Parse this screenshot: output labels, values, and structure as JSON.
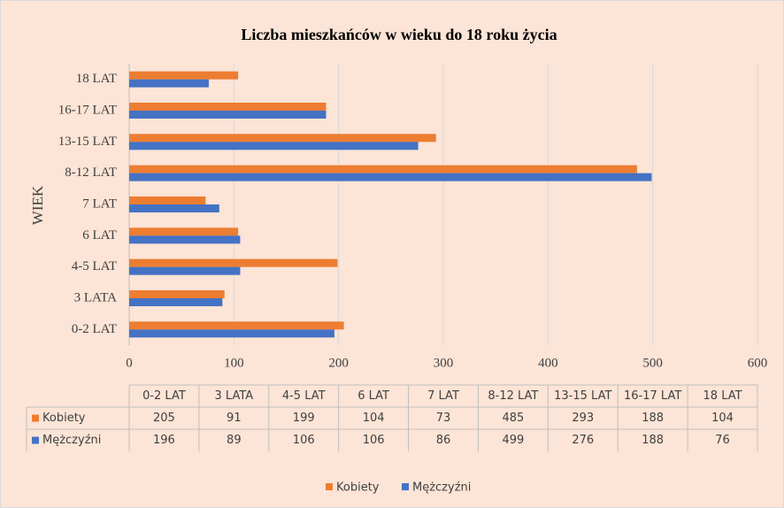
{
  "chart_data": {
    "type": "barh",
    "title": "Liczba mieszkańców w wieku do 18 roku życia",
    "ylabel": "WIEK",
    "categories": [
      "0-2 LAT",
      "3 LATA",
      "4-5 LAT",
      "6 LAT",
      "7 LAT",
      "8-12 LAT",
      "13-15 LAT",
      "16-17 LAT",
      "18 LAT"
    ],
    "series": [
      {
        "name": "Kobiety",
        "color": "#ed7d31",
        "values": [
          205,
          91,
          199,
          104,
          73,
          485,
          293,
          188,
          104
        ]
      },
      {
        "name": "Mężczyźni",
        "color": "#4472c4",
        "values": [
          196,
          89,
          106,
          106,
          86,
          499,
          276,
          188,
          76
        ]
      }
    ],
    "xlim": [
      0,
      600
    ],
    "xticks": [
      0,
      100,
      200,
      300,
      400,
      500,
      600
    ],
    "grid": true,
    "legend": "bottom",
    "data_table": true
  }
}
